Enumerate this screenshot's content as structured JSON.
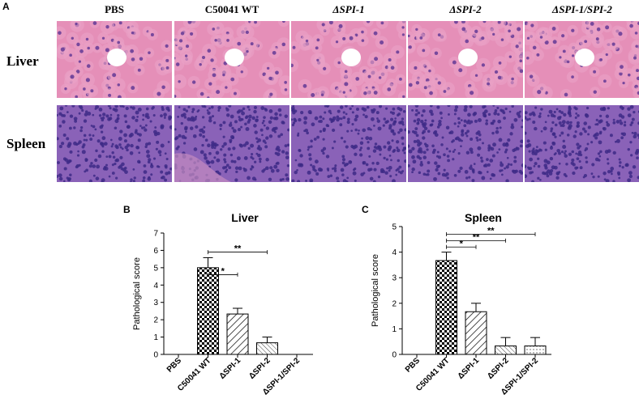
{
  "panel_a": {
    "letter": "A",
    "columns": [
      {
        "label": "PBS",
        "italic": false
      },
      {
        "label": "C50041 WT",
        "italic": false
      },
      {
        "label": "ΔSPI-1",
        "italic": true
      },
      {
        "label": "ΔSPI-2",
        "italic": true
      },
      {
        "label": "ΔSPI-1/SPI-2",
        "italic": true
      }
    ],
    "rows": [
      {
        "label": "Liver",
        "tissue": "liver",
        "bg": "#e58fb8",
        "cell": "#eaa2c6",
        "nucleus": "#6a3f98"
      },
      {
        "label": "Spleen",
        "tissue": "spleen",
        "bg": "#8a62b8",
        "cell": "#9f7cc8",
        "nucleus": "#3d2a86"
      }
    ]
  },
  "chart_data": [
    {
      "letter": "B",
      "type": "bar",
      "title": "Liver",
      "xlabel": "",
      "ylabel": "Pathological score",
      "ylim": [
        0,
        7
      ],
      "yticks": [
        0,
        1,
        2,
        3,
        4,
        5,
        6,
        7
      ],
      "categories": [
        "PBS",
        "C50041 WT",
        "ΔSPI-1",
        "ΔSPI-2",
        "ΔSPI-1/SPI-2"
      ],
      "values": [
        0,
        5.0,
        2.33,
        0.67,
        0
      ],
      "errors": [
        0,
        0.58,
        0.33,
        0.33,
        0
      ],
      "patterns": [
        "none",
        "checker",
        "diag",
        "dense",
        "dots"
      ],
      "significance": [
        {
          "from": 1,
          "to": 2,
          "label": "*",
          "y": 4.6
        },
        {
          "from": 1,
          "to": 3,
          "label": "**",
          "y": 5.9
        }
      ]
    },
    {
      "letter": "C",
      "type": "bar",
      "title": "Spleen",
      "xlabel": "",
      "ylabel": "Pathological score",
      "ylim": [
        0,
        5
      ],
      "yticks": [
        0,
        1,
        2,
        3,
        4,
        5
      ],
      "categories": [
        "PBS",
        "C50041 WT",
        "ΔSPI-1",
        "ΔSPI-2",
        "ΔSPI-1/SPI-2"
      ],
      "values": [
        0,
        3.67,
        1.67,
        0.33,
        0.33
      ],
      "errors": [
        0,
        0.33,
        0.33,
        0.33,
        0.33
      ],
      "patterns": [
        "none",
        "checker",
        "diag",
        "dense",
        "dots"
      ],
      "significance": [
        {
          "from": 1,
          "to": 2,
          "label": "*",
          "y": 4.2
        },
        {
          "from": 1,
          "to": 3,
          "label": "**",
          "y": 4.45
        },
        {
          "from": 1,
          "to": 4,
          "label": "**",
          "y": 4.7
        }
      ]
    }
  ]
}
